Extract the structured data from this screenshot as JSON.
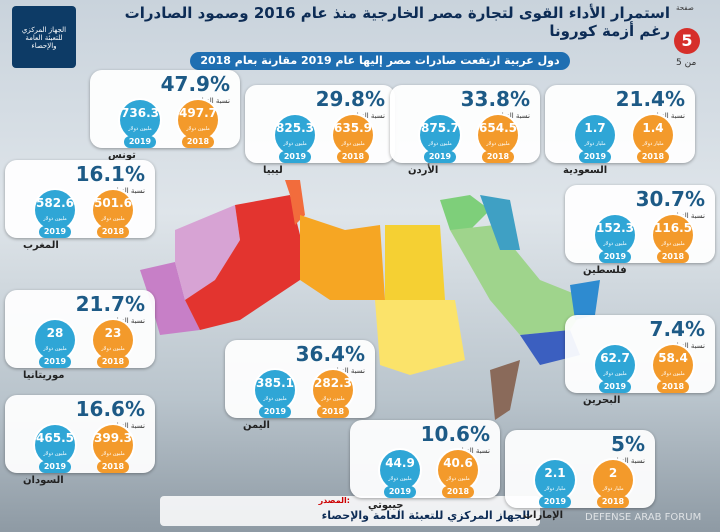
{
  "header": {
    "title": "استمرار الأداء القوى لتجارة مصر الخارجية منذ عام 2016 وصمود الصادرات رغم أزمة كورونا",
    "subtitle": "دول عربية ارتفعت صادرات مصر إليها عام 2019 مقارنة بعام 2018",
    "page_label": "صفحة",
    "page": "5",
    "page_of": "من 5",
    "logo": "الجهاز المركزي للتعبئة العامة والإحصاء"
  },
  "labels": {
    "increase": "نسبة الزيادة",
    "y2018": "2018",
    "y2019": "2019"
  },
  "countries": [
    {
      "name": "تونس",
      "value_2018": 497.7,
      "value_2019": 736.3,
      "unit": "مليون دولار",
      "increase": "47.9%"
    },
    {
      "name": "ليبيا",
      "value_2018": 635.9,
      "value_2019": 825.3,
      "unit": "مليون دولار",
      "increase": "29.8%"
    },
    {
      "name": "الأردن",
      "value_2018": 654.5,
      "value_2019": 875.7,
      "unit": "مليون دولار",
      "increase": "33.8%"
    },
    {
      "name": "السعودية",
      "value_2018": 1.4,
      "value_2019": 1.7,
      "unit": "مليار دولار",
      "increase": "21.4%"
    },
    {
      "name": "المغرب",
      "value_2018": 501.6,
      "value_2019": 582.6,
      "unit": "مليون دولار",
      "increase": "16.1%"
    },
    {
      "name": "فلسطين",
      "value_2018": 116.5,
      "value_2019": 152.3,
      "unit": "مليون دولار",
      "increase": "30.7%"
    },
    {
      "name": "موريتانيا",
      "value_2018": 23,
      "value_2019": 28,
      "unit": "مليون دولار",
      "increase": "21.7%"
    },
    {
      "name": "البحرين",
      "value_2018": 58.4,
      "value_2019": 62.7,
      "unit": "مليون دولار",
      "increase": "7.4%"
    },
    {
      "name": "اليمن",
      "value_2018": 282.3,
      "value_2019": 385.1,
      "unit": "مليون دولار",
      "increase": "36.4%"
    },
    {
      "name": "السودان",
      "value_2018": 399.3,
      "value_2019": 465.5,
      "unit": "مليون دولار",
      "increase": "16.6%"
    },
    {
      "name": "جيبوتي",
      "value_2018": 40.6,
      "value_2019": 44.9,
      "unit": "مليون دولار",
      "increase": "10.6%"
    },
    {
      "name": "الإمارات",
      "value_2018": 2,
      "value_2019": 2.1,
      "unit": "مليار دولار",
      "increase": "5%"
    }
  ],
  "source": {
    "label": "المصدر:",
    "text": "الجهاز المركزي للتعبئة العامة والإحصاء"
  },
  "watermark": "DEFENSE ARAB FORUM"
}
